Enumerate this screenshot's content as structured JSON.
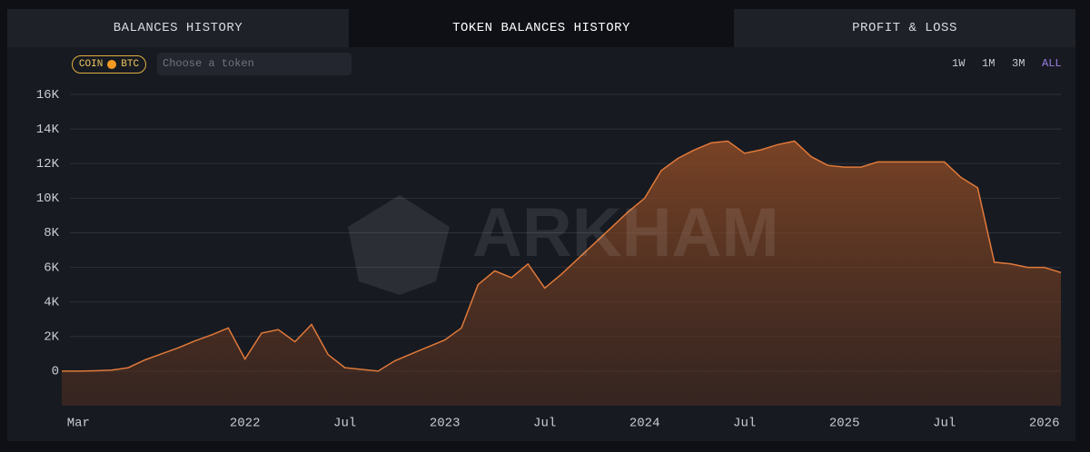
{
  "tabs": [
    "BALANCES HISTORY",
    "TOKEN BALANCES HISTORY",
    "PROFIT & LOSS"
  ],
  "chip": {
    "left": "COIN",
    "right": "BTC"
  },
  "search_placeholder": "Choose a token",
  "ranges": [
    "1W",
    "1M",
    "3M",
    "ALL"
  ],
  "chart_data": {
    "type": "area",
    "watermark": "ARKHAM",
    "x": [
      "2021-02",
      "2021-03",
      "2021-04",
      "2021-05",
      "2021-06",
      "2021-07",
      "2021-08",
      "2021-09",
      "2021-10",
      "2021-11",
      "2021-12",
      "2022-01",
      "2022-02",
      "2022-03",
      "2022-04",
      "2022-05",
      "2022-06",
      "2022-07",
      "2022-08",
      "2022-09",
      "2022-10",
      "2022-11",
      "2022-12",
      "2023-01",
      "2023-02",
      "2023-03",
      "2023-04",
      "2023-05",
      "2023-06",
      "2023-07",
      "2023-08",
      "2023-09",
      "2023-10",
      "2023-11",
      "2023-12",
      "2024-01",
      "2024-02",
      "2024-03",
      "2024-04",
      "2024-05",
      "2024-06",
      "2024-07",
      "2024-08",
      "2024-09",
      "2024-10",
      "2024-11",
      "2024-12",
      "2025-01",
      "2025-02",
      "2025-03",
      "2025-04",
      "2025-05",
      "2025-06",
      "2025-07",
      "2025-08",
      "2025-09",
      "2025-10",
      "2025-11",
      "2025-12",
      "2026-01",
      "2026-02"
    ],
    "series": [
      {
        "name": "BTC",
        "color": "#e0793a",
        "values": [
          0,
          0,
          20,
          60,
          200,
          650,
          1000,
          1350,
          1750,
          2100,
          2500,
          700,
          2200,
          2400,
          1700,
          2700,
          950,
          200,
          100,
          0,
          600,
          1000,
          1400,
          1800,
          2500,
          5000,
          5800,
          5400,
          6200,
          4800,
          5600,
          6500,
          7400,
          8300,
          9200,
          10000,
          11600,
          12300,
          12800,
          13200,
          13300,
          12600,
          12800,
          13100,
          13300,
          12400,
          11900,
          11800,
          11800,
          12100,
          12100,
          12100,
          12100,
          12100,
          11200,
          10600,
          6300,
          6200,
          6000,
          6000,
          5700
        ]
      }
    ],
    "xlim": [
      "2021-02",
      "2026-02"
    ],
    "xticks": [
      {
        "value": "2021-03",
        "label": "Mar"
      },
      {
        "value": "2022-01",
        "label": "2022"
      },
      {
        "value": "2022-07",
        "label": "Jul"
      },
      {
        "value": "2023-01",
        "label": "2023"
      },
      {
        "value": "2023-07",
        "label": "Jul"
      },
      {
        "value": "2024-01",
        "label": "2024"
      },
      {
        "value": "2024-07",
        "label": "Jul"
      },
      {
        "value": "2025-01",
        "label": "2025"
      },
      {
        "value": "2025-07",
        "label": "Jul"
      },
      {
        "value": "2026-01",
        "label": "2026"
      }
    ],
    "ylim": [
      -2000,
      17000
    ],
    "yticks": [
      0,
      {
        "value": 2000,
        "label": "2K"
      },
      {
        "value": 4000,
        "label": "4K"
      },
      {
        "value": 6000,
        "label": "6K"
      },
      {
        "value": 8000,
        "label": "8K"
      },
      {
        "value": 10000,
        "label": "10K"
      },
      {
        "value": 12000,
        "label": "12K"
      },
      {
        "value": 14000,
        "label": "14K"
      },
      {
        "value": 16000,
        "label": "16K"
      }
    ],
    "grid": true
  }
}
